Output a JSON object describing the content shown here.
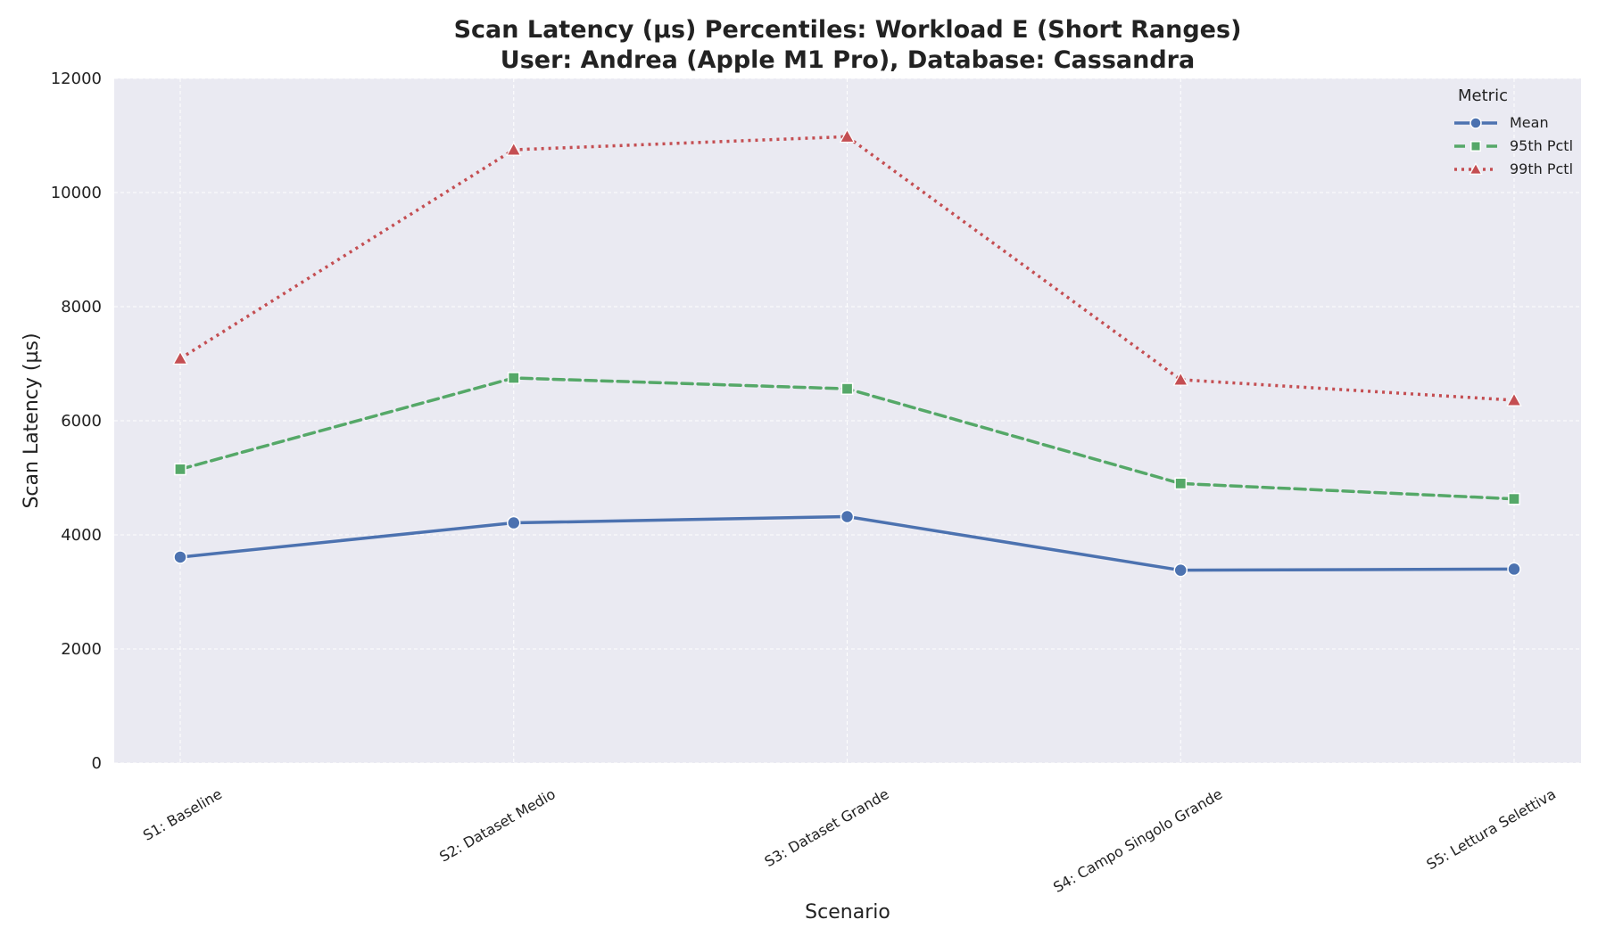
{
  "chart_data": {
    "type": "line",
    "title": "Scan Latency (µs) Percentiles: Workload E (Short Ranges)",
    "subtitle": "User: Andrea (Apple M1 Pro), Database: Cassandra",
    "xlabel": "Scenario",
    "ylabel": "Scan Latency (µs)",
    "categories": [
      "S1: Baseline",
      "S2: Dataset Medio",
      "S3: Dataset Grande",
      "S4: Campo Singolo Grande",
      "S5: Lettura Selettiva"
    ],
    "ylim": [
      0,
      12000
    ],
    "yticks": [
      0,
      2000,
      4000,
      6000,
      8000,
      10000,
      12000
    ],
    "grid": true,
    "legend": {
      "title": "Metric",
      "placement": "top-right"
    },
    "series": [
      {
        "name": "Mean",
        "values": [
          3610,
          4210,
          4320,
          3380,
          3400
        ],
        "color": "#4c72b0",
        "dash": "solid",
        "marker": "circle"
      },
      {
        "name": "95th Pctl",
        "values": [
          5150,
          6750,
          6560,
          4900,
          4630
        ],
        "color": "#55a868",
        "dash": "dashed",
        "marker": "square"
      },
      {
        "name": "99th Pctl",
        "values": [
          7090,
          10750,
          10980,
          6720,
          6360
        ],
        "color": "#c44e52",
        "dash": "dotted",
        "marker": "triangle"
      }
    ],
    "background_color": "#eaeaf2"
  }
}
